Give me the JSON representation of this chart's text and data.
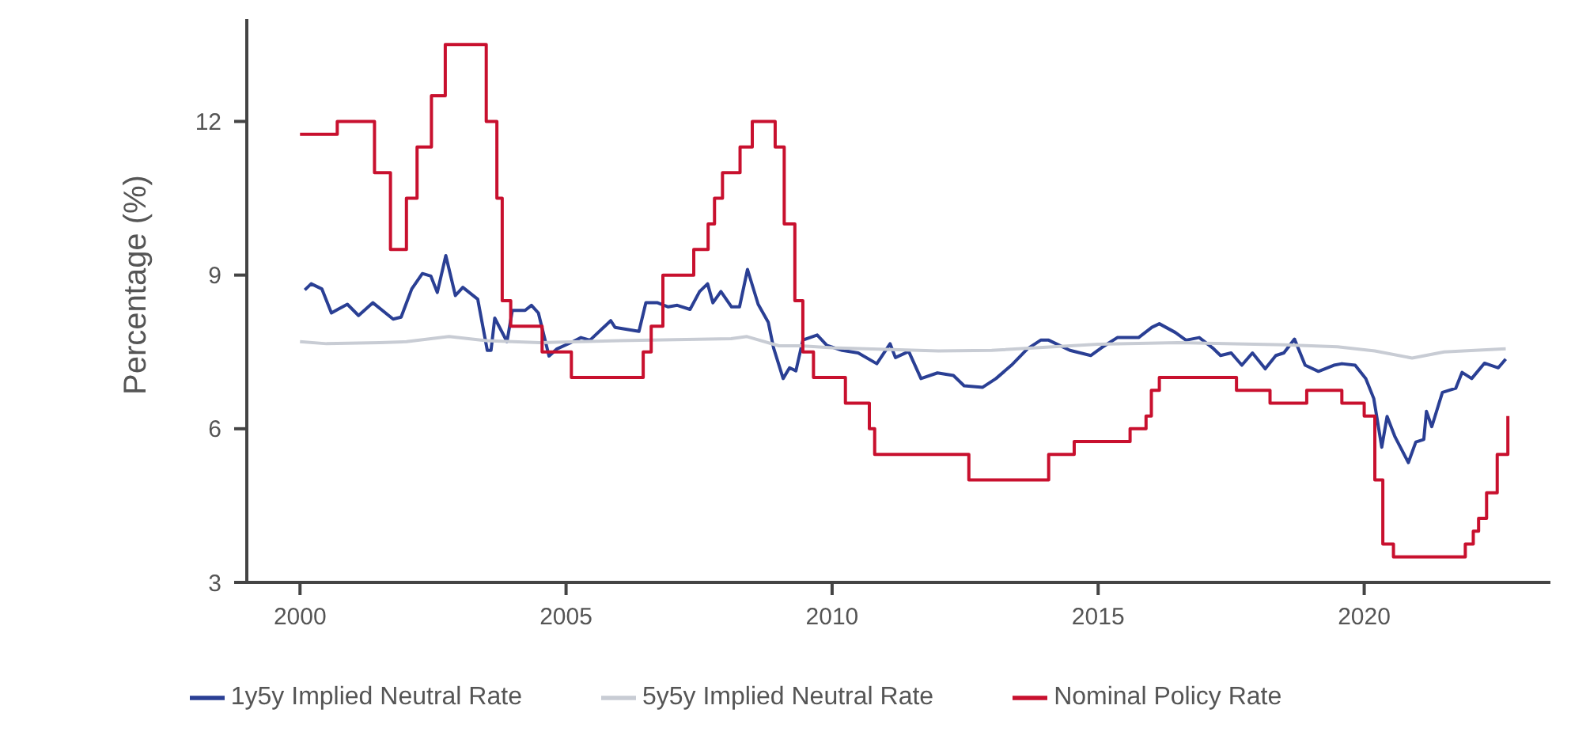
{
  "chart_data": {
    "type": "line",
    "ylabel": "Percentage (%)",
    "xlim": [
      1999,
      2023.5
    ],
    "xticks": [
      2000,
      2005,
      2010,
      2015,
      2020
    ],
    "ylim": [
      3,
      14
    ],
    "yticks": [
      3,
      6,
      9,
      12
    ],
    "grid": false,
    "legend": "bottom",
    "marker": "none",
    "line_style": "solid",
    "series": [
      {
        "name": "1y5y Implied Neutral Rate",
        "color": "#2a3f94",
        "x": [
          2000.09,
          2000.21,
          2000.41,
          2000.59,
          2000.71,
          2000.89,
          2001.1,
          2001.37,
          2001.75,
          2001.9,
          2002.1,
          2002.3,
          2002.46,
          2002.58,
          2002.74,
          2002.92,
          2003.06,
          2003.34,
          2003.52,
          2003.59,
          2003.66,
          2003.89,
          2003.99,
          2004.23,
          2004.35,
          2004.48,
          2004.68,
          2004.83,
          2005.13,
          2005.28,
          2005.45,
          2005.84,
          2005.92,
          2006.37,
          2006.5,
          2006.72,
          2006.92,
          2007.09,
          2007.33,
          2007.51,
          2007.66,
          2007.76,
          2007.91,
          2008.11,
          2008.26,
          2008.41,
          2008.61,
          2008.8,
          2008.9,
          2009.08,
          2009.2,
          2009.32,
          2009.45,
          2009.72,
          2009.9,
          2010.19,
          2010.49,
          2010.84,
          2011.09,
          2011.19,
          2011.44,
          2011.67,
          2011.98,
          2012.28,
          2012.48,
          2012.83,
          2013.08,
          2013.37,
          2013.67,
          2013.92,
          2014.07,
          2014.47,
          2014.86,
          2015.06,
          2015.36,
          2015.76,
          2016.01,
          2016.15,
          2016.45,
          2016.65,
          2016.9,
          2017.15,
          2017.3,
          2017.5,
          2017.7,
          2017.9,
          2018.14,
          2018.34,
          2018.49,
          2018.69,
          2018.89,
          2019.14,
          2019.43,
          2019.58,
          2019.83,
          2020.03,
          2020.18,
          2020.33,
          2020.43,
          2020.58,
          2020.83,
          2020.97,
          2021.12,
          2021.17,
          2021.27,
          2021.47,
          2021.72,
          2021.84,
          2022.02,
          2022.26,
          2022.52,
          2022.66
        ],
        "values": [
          8.71,
          8.83,
          8.73,
          8.26,
          8.33,
          8.43,
          8.21,
          8.46,
          8.14,
          8.18,
          8.73,
          9.03,
          8.98,
          8.66,
          9.38,
          8.6,
          8.76,
          8.53,
          7.53,
          7.53,
          8.16,
          7.7,
          8.31,
          8.31,
          8.41,
          8.26,
          7.42,
          7.56,
          7.7,
          7.78,
          7.73,
          8.11,
          7.98,
          7.9,
          8.46,
          8.46,
          8.38,
          8.41,
          8.33,
          8.68,
          8.83,
          8.46,
          8.68,
          8.38,
          8.38,
          9.11,
          8.43,
          8.08,
          7.58,
          6.98,
          7.19,
          7.13,
          7.73,
          7.83,
          7.63,
          7.53,
          7.48,
          7.27,
          7.66,
          7.39,
          7.51,
          6.98,
          7.09,
          7.04,
          6.84,
          6.81,
          6.98,
          7.24,
          7.56,
          7.73,
          7.73,
          7.53,
          7.43,
          7.58,
          7.78,
          7.78,
          7.98,
          8.05,
          7.88,
          7.73,
          7.78,
          7.58,
          7.43,
          7.48,
          7.24,
          7.48,
          7.17,
          7.43,
          7.48,
          7.75,
          7.24,
          7.12,
          7.24,
          7.27,
          7.24,
          6.98,
          6.59,
          5.64,
          6.24,
          5.84,
          5.34,
          5.74,
          5.79,
          6.34,
          6.04,
          6.71,
          6.79,
          7.1,
          6.98,
          7.28,
          7.19,
          7.36
        ]
      },
      {
        "name": "5y5y Implied Neutral Rate",
        "color": "#c8ccd4",
        "x": [
          2000,
          2000.5,
          2001.5,
          2002,
          2002.8,
          2003.5,
          2004.5,
          2006,
          2008.1,
          2008.4,
          2009,
          2009.4,
          2010,
          2012,
          2013,
          2015,
          2016.5,
          2018.5,
          2019.5,
          2020.2,
          2020.9,
          2021.5,
          2022.66
        ],
        "values": [
          7.7,
          7.66,
          7.68,
          7.7,
          7.8,
          7.72,
          7.68,
          7.72,
          7.76,
          7.8,
          7.62,
          7.62,
          7.58,
          7.52,
          7.53,
          7.65,
          7.68,
          7.64,
          7.6,
          7.52,
          7.38,
          7.5,
          7.56
        ]
      },
      {
        "name": "Nominal Policy Rate",
        "type": "step",
        "color": "#c8102e",
        "x": [
          2000,
          2000.7,
          2001.4,
          2001.7,
          2002,
          2002.2,
          2002.47,
          2002.73,
          2003.5,
          2003.7,
          2003.8,
          2003.96,
          2004.55,
          2005.1,
          2006.45,
          2006.6,
          2006.82,
          2007.4,
          2007.67,
          2007.79,
          2007.94,
          2008.27,
          2008.5,
          2008.93,
          2009.1,
          2009.3,
          2009.45,
          2009.65,
          2010.25,
          2010.7,
          2010.8,
          2012.57,
          2014.07,
          2014.55,
          2015.6,
          2015.9,
          2016,
          2016.15,
          2017.6,
          2018.23,
          2018.92,
          2019.58,
          2020,
          2020.2,
          2020.35,
          2020.55,
          2021.9,
          2022.05,
          2022.15,
          2022.3,
          2022.5,
          2022.7
        ],
        "values": [
          11.75,
          12,
          11,
          9.5,
          10.5,
          11.5,
          12.5,
          13.5,
          12,
          10.5,
          8.5,
          8,
          7.5,
          7,
          7.5,
          8,
          9,
          9.5,
          10,
          10.5,
          11,
          11.5,
          12,
          11.5,
          10,
          8.5,
          7.5,
          7,
          6.5,
          6,
          5.5,
          5,
          5.5,
          5.75,
          6,
          6.25,
          6.75,
          7,
          6.75,
          6.5,
          6.75,
          6.5,
          6.25,
          5,
          3.75,
          3.5,
          3.75,
          4,
          4.25,
          4.75,
          5.5,
          6.25
        ]
      }
    ]
  }
}
